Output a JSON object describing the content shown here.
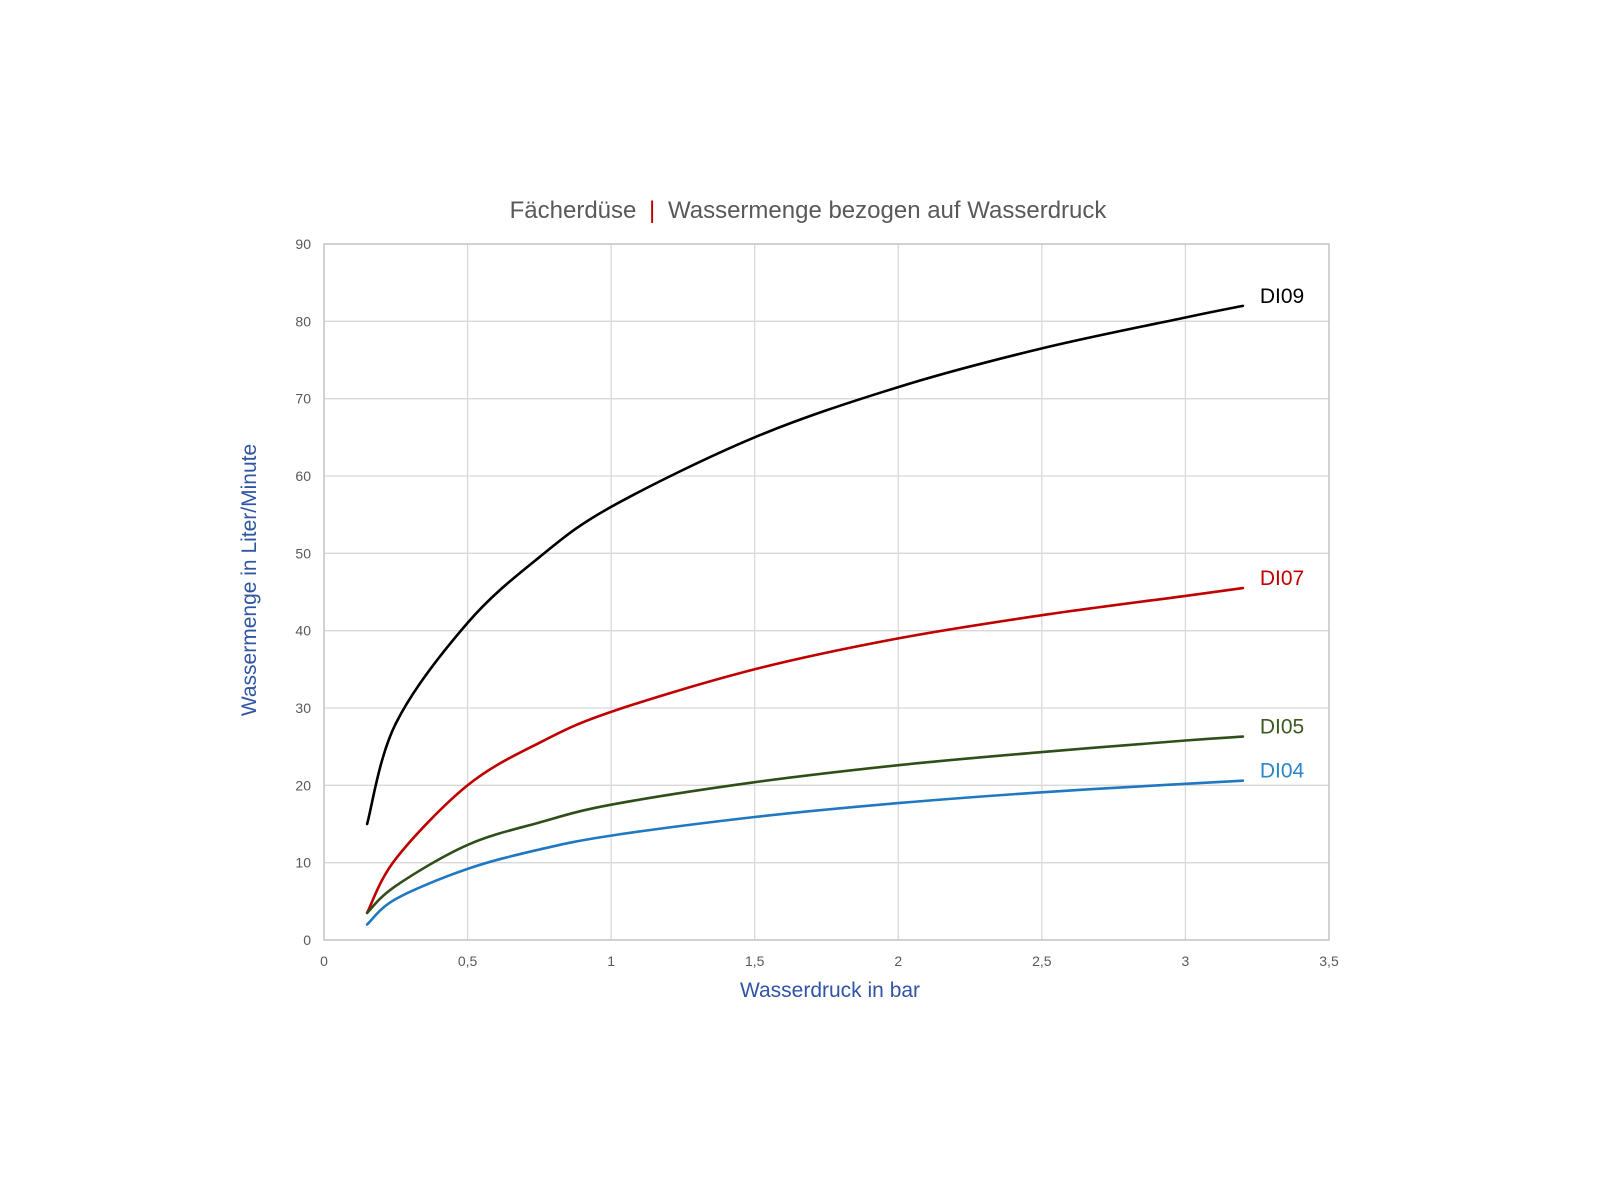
{
  "chart_data": {
    "type": "line",
    "title": {
      "part1": "Fächerdüse",
      "separator": "|",
      "part2": "Wassermenge bezogen auf Wasserdruck"
    },
    "xlabel": "Wasserdruck in bar",
    "ylabel": "Wassermenge in Liter/Minute",
    "xlim": [
      0,
      3.5
    ],
    "ylim": [
      0,
      90
    ],
    "x_ticks": [
      "0",
      "0,5",
      "1",
      "1,5",
      "2",
      "2,5",
      "3",
      "3,5"
    ],
    "y_ticks": [
      "0",
      "10",
      "20",
      "30",
      "40",
      "50",
      "60",
      "70",
      "80",
      "90"
    ],
    "grid": true,
    "legend": "labels at line ends",
    "x": [
      0.15,
      0.25,
      0.5,
      0.75,
      1.0,
      1.5,
      2.0,
      2.5,
      3.0,
      3.2
    ],
    "series": [
      {
        "name": "DI09",
        "color": "#000000",
        "label_color": "#000000",
        "values": [
          15.0,
          28.0,
          41.0,
          49.5,
          56.0,
          65.0,
          71.5,
          76.5,
          80.5,
          82.0
        ]
      },
      {
        "name": "DI07",
        "color": "#c00000",
        "label_color": "#c00000",
        "values": [
          3.5,
          10.5,
          20.0,
          25.5,
          29.5,
          35.0,
          39.0,
          42.0,
          44.5,
          45.5
        ]
      },
      {
        "name": "DI05",
        "color": "#2f4f1a",
        "label_color": "#3a5a1e",
        "values": [
          3.5,
          7.0,
          12.3,
          15.2,
          17.5,
          20.4,
          22.6,
          24.3,
          25.8,
          26.3
        ]
      },
      {
        "name": "DI04",
        "color": "#1f78c1",
        "label_color": "#2a86c9",
        "values": [
          2.0,
          5.3,
          9.2,
          11.7,
          13.5,
          15.9,
          17.7,
          19.1,
          20.2,
          20.6
        ]
      }
    ],
    "colors": {
      "title_separator": "#c00000",
      "axis_titles": "#2f55a4",
      "grid": "#d9d9d9"
    }
  }
}
